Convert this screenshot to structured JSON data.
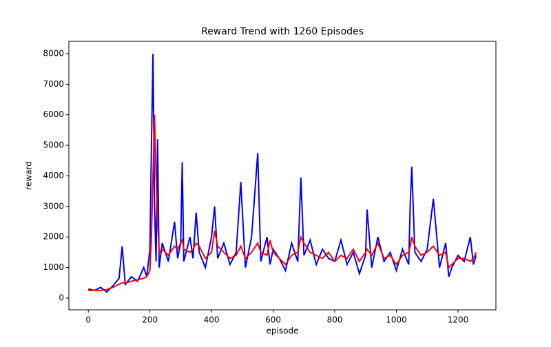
{
  "chart_data": {
    "type": "line",
    "title": "Reward Trend with 1260 Episodes",
    "x_label": "episode",
    "y_label": "reward",
    "x": [
      0,
      20,
      40,
      60,
      80,
      100,
      110,
      120,
      140,
      160,
      180,
      190,
      200,
      205,
      210,
      215,
      220,
      225,
      230,
      240,
      260,
      280,
      290,
      300,
      305,
      310,
      330,
      340,
      350,
      360,
      380,
      400,
      410,
      420,
      440,
      460,
      480,
      495,
      510,
      530,
      550,
      560,
      580,
      590,
      600,
      620,
      640,
      660,
      680,
      690,
      700,
      720,
      740,
      760,
      780,
      800,
      820,
      840,
      860,
      880,
      900,
      905,
      920,
      940,
      960,
      980,
      1000,
      1020,
      1040,
      1045,
      1050,
      1060,
      1080,
      1100,
      1120,
      1140,
      1160,
      1170,
      1180,
      1200,
      1220,
      1240,
      1250,
      1259
    ],
    "series": [
      {
        "color": "#0000ff",
        "values": [
          300,
          250,
          350,
          200,
          400,
          650,
          1700,
          450,
          700,
          550,
          1000,
          700,
          1600,
          5000,
          8000,
          3000,
          1200,
          5200,
          1000,
          1800,
          1200,
          2500,
          1300,
          1800,
          4450,
          1200,
          2000,
          1300,
          2800,
          1500,
          1000,
          2000,
          3000,
          1300,
          1800,
          1100,
          1500,
          3800,
          1000,
          2000,
          4750,
          1200,
          2000,
          1100,
          1600,
          1300,
          900,
          1800,
          1200,
          3950,
          1400,
          1900,
          1100,
          1600,
          1300,
          1200,
          1900,
          1100,
          1500,
          800,
          1400,
          2900,
          1000,
          2000,
          1200,
          1500,
          900,
          1600,
          1100,
          3100,
          4300,
          1500,
          1200,
          1600,
          3250,
          1000,
          1800,
          700,
          1000,
          1400,
          1200,
          2000,
          1100,
          1400
        ]
      },
      {
        "color": "#ff0000",
        "values": [
          250,
          250,
          250,
          280,
          350,
          450,
          500,
          500,
          550,
          600,
          650,
          700,
          900,
          2000,
          4000,
          6000,
          4000,
          2500,
          1500,
          1600,
          1400,
          1700,
          1600,
          1800,
          1900,
          1600,
          1500,
          1600,
          1800,
          1700,
          1300,
          1500,
          2200,
          1700,
          1500,
          1300,
          1400,
          1700,
          1300,
          1500,
          1800,
          1500,
          1400,
          1900,
          1500,
          1300,
          1100,
          1400,
          1500,
          2000,
          1800,
          1500,
          1400,
          1300,
          1500,
          1200,
          1400,
          1300,
          1600,
          1200,
          1500,
          1600,
          1400,
          1800,
          1300,
          1400,
          1100,
          1400,
          1500,
          1700,
          2000,
          1700,
          1400,
          1500,
          1700,
          1400,
          1500,
          1000,
          1100,
          1300,
          1300,
          1200,
          1300,
          1500
        ]
      }
    ],
    "xlim": [
      -63,
      1323
    ],
    "ylim": [
      -383,
      8405
    ],
    "xticks": [
      0,
      200,
      400,
      600,
      800,
      1000,
      1200
    ],
    "yticks": [
      0,
      1000,
      2000,
      3000,
      4000,
      5000,
      6000,
      7000,
      8000
    ]
  }
}
